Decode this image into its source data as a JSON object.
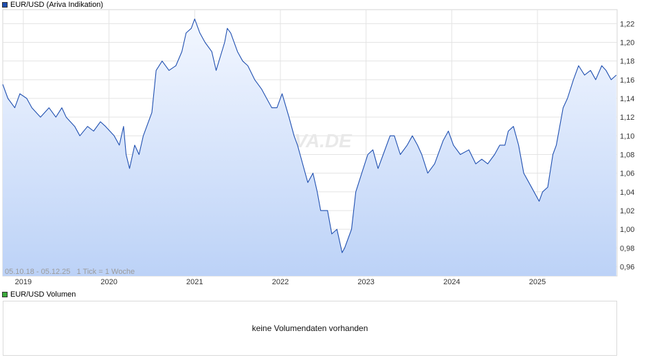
{
  "legend": {
    "price_label": "EUR/USD (Ariva Indikation)",
    "price_color": "#1f4fb0",
    "volume_label": "EUR/USD Volumen",
    "volume_color": "#3cab3c"
  },
  "range_note": "05.10.18 - 05.12.25   1 Tick = 1 Woche",
  "watermark": "ARIVA.DE",
  "volume_message": "keine Volumendaten vorhanden",
  "chart_data": {
    "type": "area",
    "title": "EUR/USD (Ariva Indikation)",
    "xlabel": "",
    "ylabel": "",
    "ylim": [
      0.95,
      1.235
    ],
    "xlim": [
      2018.76,
      2025.93
    ],
    "grid": true,
    "y_ticks": [
      "1,22",
      "1,20",
      "1,18",
      "1,16",
      "1,14",
      "1,12",
      "1,10",
      "1,08",
      "1,06",
      "1,04",
      "1,02",
      "1,00",
      "0,98",
      "0,96"
    ],
    "y_tick_values": [
      1.22,
      1.2,
      1.18,
      1.16,
      1.14,
      1.12,
      1.1,
      1.08,
      1.06,
      1.04,
      1.02,
      1.0,
      0.98,
      0.96
    ],
    "x_ticks": [
      "2019",
      "2020",
      "2021",
      "2022",
      "2023",
      "2024",
      "2025"
    ],
    "x_tick_values": [
      2019,
      2020,
      2021,
      2022,
      2023,
      2024,
      2025
    ],
    "series": [
      {
        "name": "EUR/USD",
        "x": [
          2018.76,
          2018.82,
          2018.9,
          2018.96,
          2019.04,
          2019.1,
          2019.2,
          2019.3,
          2019.38,
          2019.45,
          2019.5,
          2019.6,
          2019.66,
          2019.75,
          2019.82,
          2019.9,
          2019.96,
          2020.06,
          2020.12,
          2020.17,
          2020.2,
          2020.24,
          2020.3,
          2020.35,
          2020.4,
          2020.5,
          2020.55,
          2020.62,
          2020.7,
          2020.78,
          2020.85,
          2020.9,
          2020.96,
          2021.0,
          2021.06,
          2021.12,
          2021.2,
          2021.25,
          2021.3,
          2021.35,
          2021.38,
          2021.42,
          2021.5,
          2021.56,
          2021.62,
          2021.7,
          2021.78,
          2021.84,
          2021.9,
          2021.96,
          2022.02,
          2022.1,
          2022.16,
          2022.2,
          2022.26,
          2022.32,
          2022.38,
          2022.43,
          2022.47,
          2022.55,
          2022.6,
          2022.66,
          2022.72,
          2022.75,
          2022.83,
          2022.88,
          2022.95,
          2023.02,
          2023.08,
          2023.14,
          2023.2,
          2023.28,
          2023.33,
          2023.4,
          2023.48,
          2023.54,
          2023.6,
          2023.65,
          2023.72,
          2023.8,
          2023.9,
          2023.96,
          2024.02,
          2024.1,
          2024.2,
          2024.28,
          2024.35,
          2024.42,
          2024.5,
          2024.56,
          2024.62,
          2024.66,
          2024.72,
          2024.78,
          2024.84,
          2024.9,
          2024.96,
          2025.02,
          2025.06,
          2025.12,
          2025.18,
          2025.22,
          2025.3,
          2025.35,
          2025.42,
          2025.48,
          2025.55,
          2025.62,
          2025.68,
          2025.75,
          2025.8,
          2025.86,
          2025.92
        ],
        "y": [
          1.155,
          1.14,
          1.13,
          1.145,
          1.14,
          1.13,
          1.12,
          1.13,
          1.12,
          1.13,
          1.12,
          1.11,
          1.1,
          1.11,
          1.105,
          1.115,
          1.11,
          1.1,
          1.09,
          1.11,
          1.08,
          1.065,
          1.09,
          1.08,
          1.1,
          1.125,
          1.17,
          1.18,
          1.17,
          1.175,
          1.19,
          1.21,
          1.215,
          1.225,
          1.21,
          1.2,
          1.19,
          1.17,
          1.185,
          1.2,
          1.215,
          1.21,
          1.19,
          1.18,
          1.175,
          1.16,
          1.15,
          1.14,
          1.13,
          1.13,
          1.145,
          1.12,
          1.1,
          1.09,
          1.07,
          1.05,
          1.06,
          1.04,
          1.02,
          1.02,
          0.995,
          1.0,
          0.975,
          0.98,
          1.0,
          1.04,
          1.06,
          1.08,
          1.085,
          1.065,
          1.08,
          1.1,
          1.1,
          1.08,
          1.09,
          1.1,
          1.09,
          1.08,
          1.06,
          1.07,
          1.095,
          1.105,
          1.09,
          1.08,
          1.085,
          1.07,
          1.075,
          1.07,
          1.08,
          1.09,
          1.09,
          1.105,
          1.11,
          1.09,
          1.06,
          1.05,
          1.04,
          1.03,
          1.04,
          1.045,
          1.08,
          1.09,
          1.13,
          1.14,
          1.16,
          1.175,
          1.165,
          1.17,
          1.16,
          1.175,
          1.17,
          1.16,
          1.165
        ]
      }
    ]
  }
}
